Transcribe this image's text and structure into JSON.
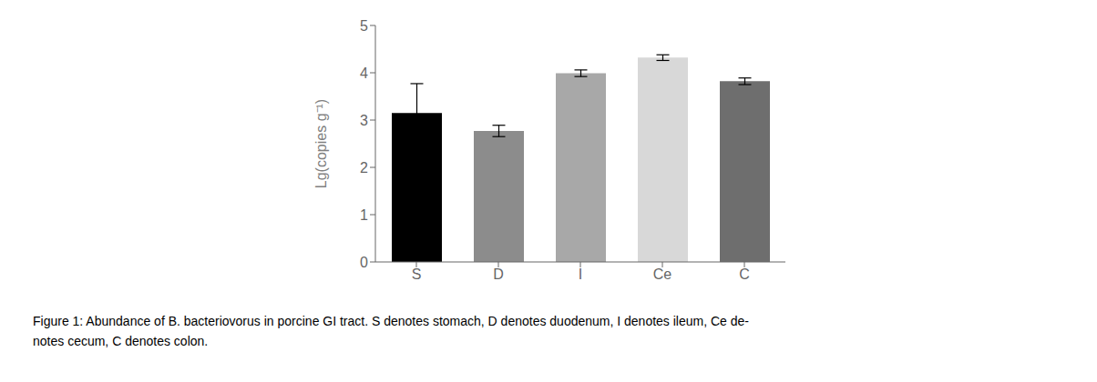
{
  "chart_data": {
    "type": "bar",
    "categories": [
      "S",
      "D",
      "I",
      "Ce",
      "C"
    ],
    "values": [
      3.15,
      2.77,
      3.99,
      4.32,
      3.82
    ],
    "errors": [
      0.62,
      0.12,
      0.07,
      0.06,
      0.07
    ],
    "colors": [
      "#000000",
      "#8c8c8c",
      "#a8a8a8",
      "#d8d8d8",
      "#6e6e6e"
    ],
    "y_label": "Lg(copies g⁻¹)",
    "ylim": [
      0,
      5
    ],
    "yticks": [
      0,
      1,
      2,
      3,
      4,
      5
    ],
    "grid": false,
    "annotations": [
      "Figure 1: Abundance of B. bacteriovorus in porcine GI tract. S denotes stomach, D denotes duodenum, I denotes ileum, Ce de-",
      "notes cecum, C denotes colon."
    ]
  }
}
